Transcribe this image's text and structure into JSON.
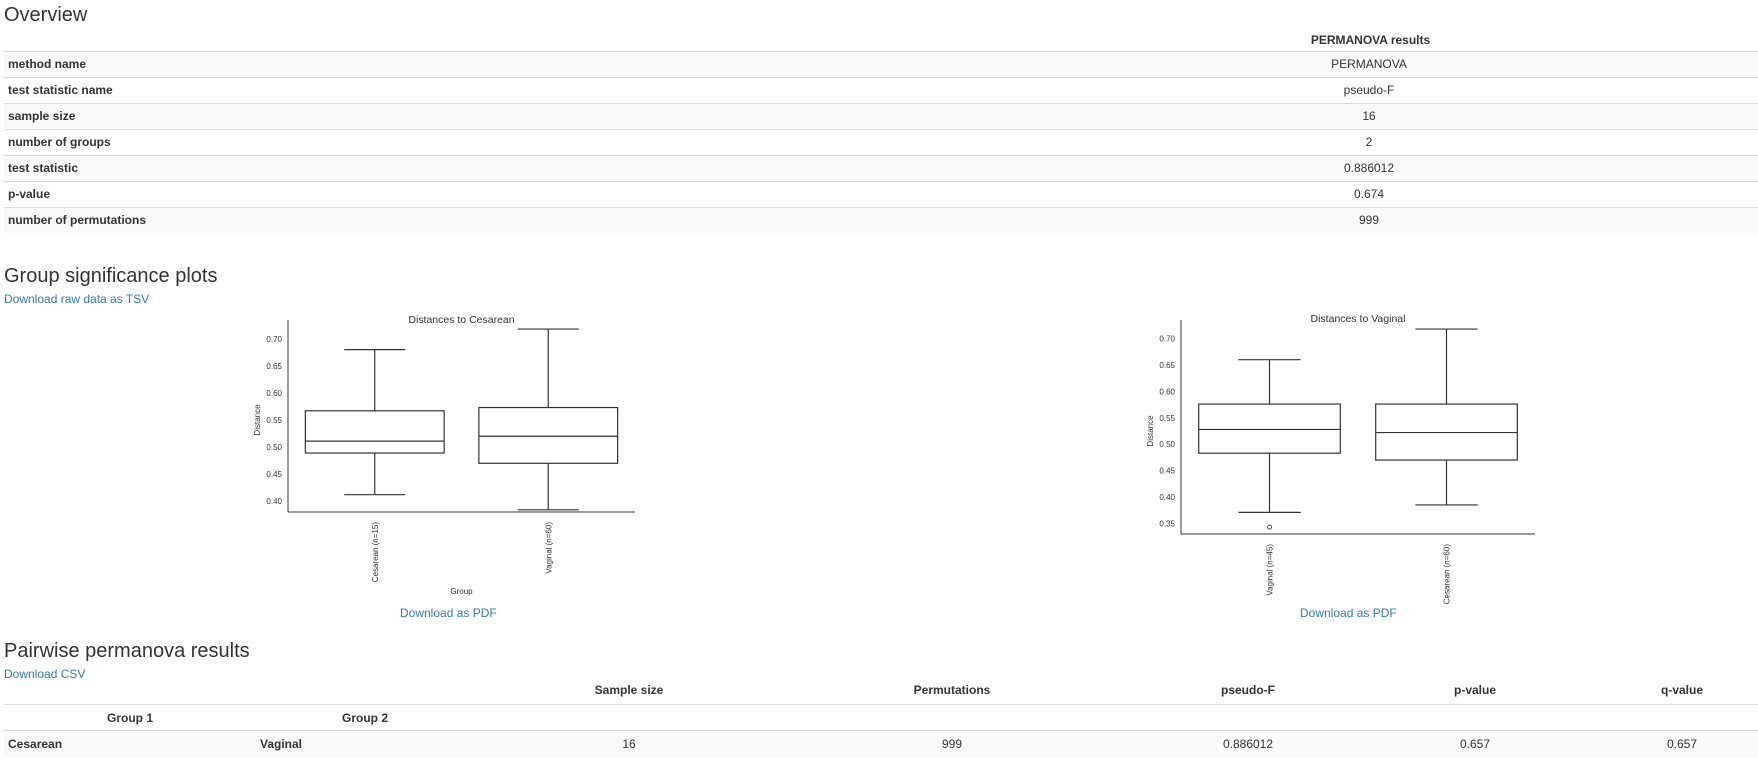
{
  "overview": {
    "title": "Overview",
    "table_header": "PERMANOVA results",
    "rows": [
      {
        "label": "method name",
        "value": "PERMANOVA"
      },
      {
        "label": "test statistic name",
        "value": "pseudo-F"
      },
      {
        "label": "sample size",
        "value": "16"
      },
      {
        "label": "number of groups",
        "value": "2"
      },
      {
        "label": "test statistic",
        "value": "0.886012"
      },
      {
        "label": "p-value",
        "value": "0.674"
      },
      {
        "label": "number of permutations",
        "value": "999"
      }
    ]
  },
  "group_significance": {
    "title": "Group significance plots",
    "download_tsv": "Download raw data as TSV",
    "download_pdf_label": "Download as PDF"
  },
  "chart_data": [
    {
      "type": "boxplot",
      "title": "Distances to Cesarean",
      "xlabel": "Group",
      "ylabel": "Distance",
      "ylim": [
        0.38,
        0.72
      ],
      "yticks": [
        "0.40",
        "0.45",
        "0.50",
        "0.55",
        "0.60",
        "0.65",
        "0.70"
      ],
      "categories": [
        "Cesarean (n=15)",
        "Vaginal (n=60)"
      ],
      "boxes": [
        {
          "whisker_low": 0.412,
          "q1": 0.489,
          "median": 0.511,
          "q3": 0.567,
          "whisker_high": 0.68,
          "outliers": []
        },
        {
          "whisker_low": 0.384,
          "q1": 0.47,
          "median": 0.52,
          "q3": 0.573,
          "whisker_high": 0.718,
          "outliers": []
        }
      ]
    },
    {
      "type": "boxplot",
      "title": "Distances to Vaginal",
      "xlabel": "",
      "ylabel": "Distance",
      "ylim": [
        0.33,
        0.72
      ],
      "yticks": [
        "0.35",
        "0.40",
        "0.45",
        "0.50",
        "0.55",
        "0.60",
        "0.65",
        "0.70"
      ],
      "categories": [
        "Vaginal (n=45)",
        "Cesarean (n=60)"
      ],
      "boxes": [
        {
          "whisker_low": 0.371,
          "q1": 0.483,
          "median": 0.528,
          "q3": 0.576,
          "whisker_high": 0.66,
          "outliers": [
            0.343
          ]
        },
        {
          "whisker_low": 0.385,
          "q1": 0.47,
          "median": 0.522,
          "q3": 0.576,
          "whisker_high": 0.718,
          "outliers": []
        }
      ]
    }
  ],
  "pairwise": {
    "title": "Pairwise permanova results",
    "download_csv": "Download CSV",
    "headers": [
      "Sample size",
      "Permutations",
      "pseudo-F",
      "p-value",
      "q-value"
    ],
    "group_headers": [
      "Group 1",
      "Group 2"
    ],
    "rows": [
      {
        "group1": "Cesarean",
        "group2": "Vaginal",
        "sample_size": "16",
        "permutations": "999",
        "pseudo_f": "0.886012",
        "p_value": "0.657",
        "q_value": "0.657"
      }
    ]
  }
}
